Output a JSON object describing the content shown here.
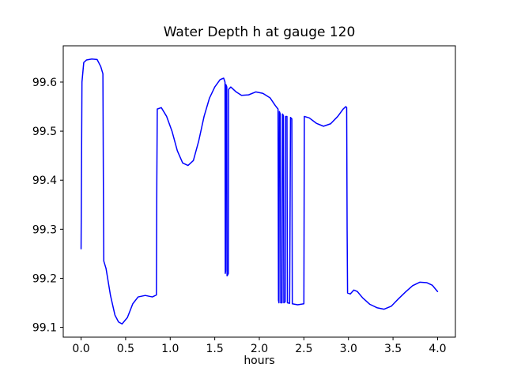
{
  "figure": {
    "background": "#ffffff",
    "axes_edge_color": "#000000"
  },
  "chart_data": {
    "type": "line",
    "title": "Water Depth h at gauge 120",
    "xlabel": "hours",
    "ylabel": "",
    "grid": false,
    "legend": "none",
    "line_color": "#0000ff",
    "xlim": [
      -0.2,
      4.2
    ],
    "ylim": [
      99.08,
      99.674
    ],
    "xticks": [
      0.0,
      0.5,
      1.0,
      1.5,
      2.0,
      2.5,
      3.0,
      3.5,
      4.0
    ],
    "xtick_labels": [
      "0.0",
      "0.5",
      "1.0",
      "1.5",
      "2.0",
      "2.5",
      "3.0",
      "3.5",
      "4.0"
    ],
    "yticks": [
      99.1,
      99.2,
      99.3,
      99.4,
      99.5,
      99.6
    ],
    "ytick_labels": [
      "99.1",
      "99.2",
      "99.3",
      "99.4",
      "99.5",
      "99.6"
    ],
    "series": [
      {
        "name": "h",
        "color": "#0000ff",
        "x": [
          0.0,
          0.01,
          0.03,
          0.06,
          0.12,
          0.18,
          0.22,
          0.245,
          0.25,
          0.255,
          0.28,
          0.33,
          0.38,
          0.42,
          0.46,
          0.52,
          0.58,
          0.64,
          0.72,
          0.8,
          0.845,
          0.85,
          0.855,
          0.9,
          0.96,
          1.02,
          1.08,
          1.14,
          1.2,
          1.26,
          1.32,
          1.38,
          1.44,
          1.5,
          1.56,
          1.6,
          1.615,
          1.618,
          1.622,
          1.625,
          1.635,
          1.638,
          1.648,
          1.652,
          1.655,
          1.68,
          1.74,
          1.8,
          1.88,
          1.96,
          2.04,
          2.12,
          2.18,
          2.21,
          2.215,
          2.22,
          2.225,
          2.235,
          2.24,
          2.255,
          2.26,
          2.27,
          2.275,
          2.29,
          2.295,
          2.31,
          2.315,
          2.34,
          2.35,
          2.365,
          2.37,
          2.43,
          2.5,
          2.505,
          2.56,
          2.64,
          2.72,
          2.8,
          2.88,
          2.94,
          2.97,
          2.98,
          2.985,
          2.99,
          3.02,
          3.06,
          3.1,
          3.16,
          3.24,
          3.32,
          3.4,
          3.48,
          3.56,
          3.64,
          3.72,
          3.8,
          3.88,
          3.94,
          4.0
        ],
        "y": [
          99.26,
          99.6,
          99.64,
          99.645,
          99.647,
          99.646,
          99.632,
          99.617,
          99.4,
          99.235,
          99.22,
          99.165,
          99.125,
          99.111,
          99.107,
          99.12,
          99.148,
          99.162,
          99.165,
          99.162,
          99.166,
          99.4,
          99.545,
          99.548,
          99.53,
          99.5,
          99.46,
          99.435,
          99.43,
          99.44,
          99.48,
          99.53,
          99.567,
          99.59,
          99.605,
          99.608,
          99.6,
          99.21,
          99.215,
          99.595,
          99.59,
          99.205,
          99.208,
          99.21,
          99.585,
          99.59,
          99.58,
          99.573,
          99.574,
          99.58,
          99.577,
          99.568,
          99.552,
          99.545,
          99.155,
          99.15,
          99.54,
          99.535,
          99.15,
          99.15,
          99.535,
          99.532,
          99.15,
          99.152,
          99.53,
          99.53,
          99.15,
          99.149,
          99.528,
          99.525,
          99.148,
          99.146,
          99.148,
          99.53,
          99.527,
          99.516,
          99.51,
          99.515,
          99.53,
          99.545,
          99.55,
          99.548,
          99.3,
          99.17,
          99.168,
          99.176,
          99.173,
          99.16,
          99.147,
          99.14,
          99.137,
          99.143,
          99.158,
          99.172,
          99.185,
          99.192,
          99.191,
          99.186,
          99.173
        ]
      }
    ]
  }
}
